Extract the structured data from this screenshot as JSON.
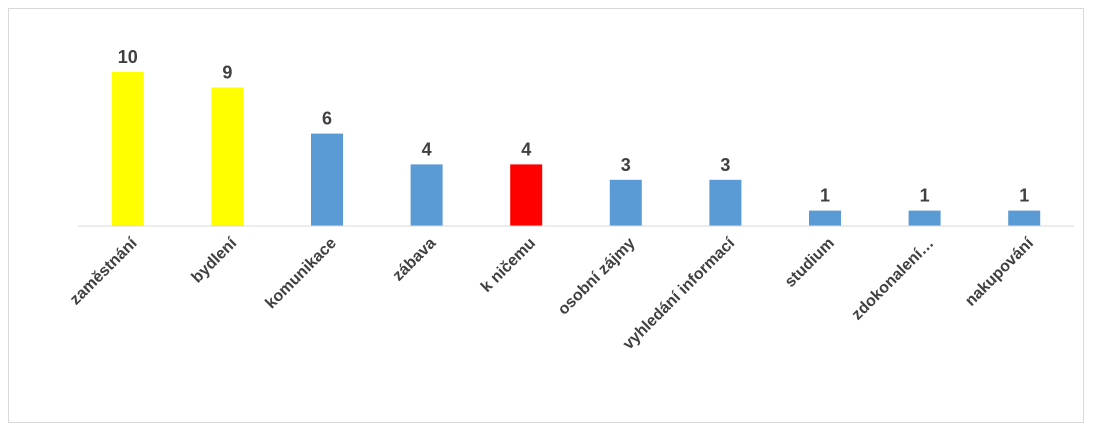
{
  "chart_data": {
    "type": "bar",
    "title": "",
    "xlabel": "",
    "ylabel": "",
    "ylim": [
      0,
      10
    ],
    "grid": false,
    "legend": "none",
    "categories": [
      "zaměstnání",
      "bydlení",
      "komunikace",
      "zábava",
      "k ničemu",
      "osobní zájmy",
      "vyhledání informací",
      "studium",
      "zdokonalení…",
      "nakupování"
    ],
    "values": [
      10,
      9,
      6,
      4,
      4,
      3,
      3,
      1,
      1,
      1
    ],
    "bar_colors": [
      "#ffff00",
      "#ffff00",
      "#5b9bd5",
      "#5b9bd5",
      "#ff0000",
      "#5b9bd5",
      "#5b9bd5",
      "#5b9bd5",
      "#5b9bd5",
      "#5b9bd5"
    ],
    "axis_color": "#d9d9d9",
    "label_color": "#404040"
  }
}
